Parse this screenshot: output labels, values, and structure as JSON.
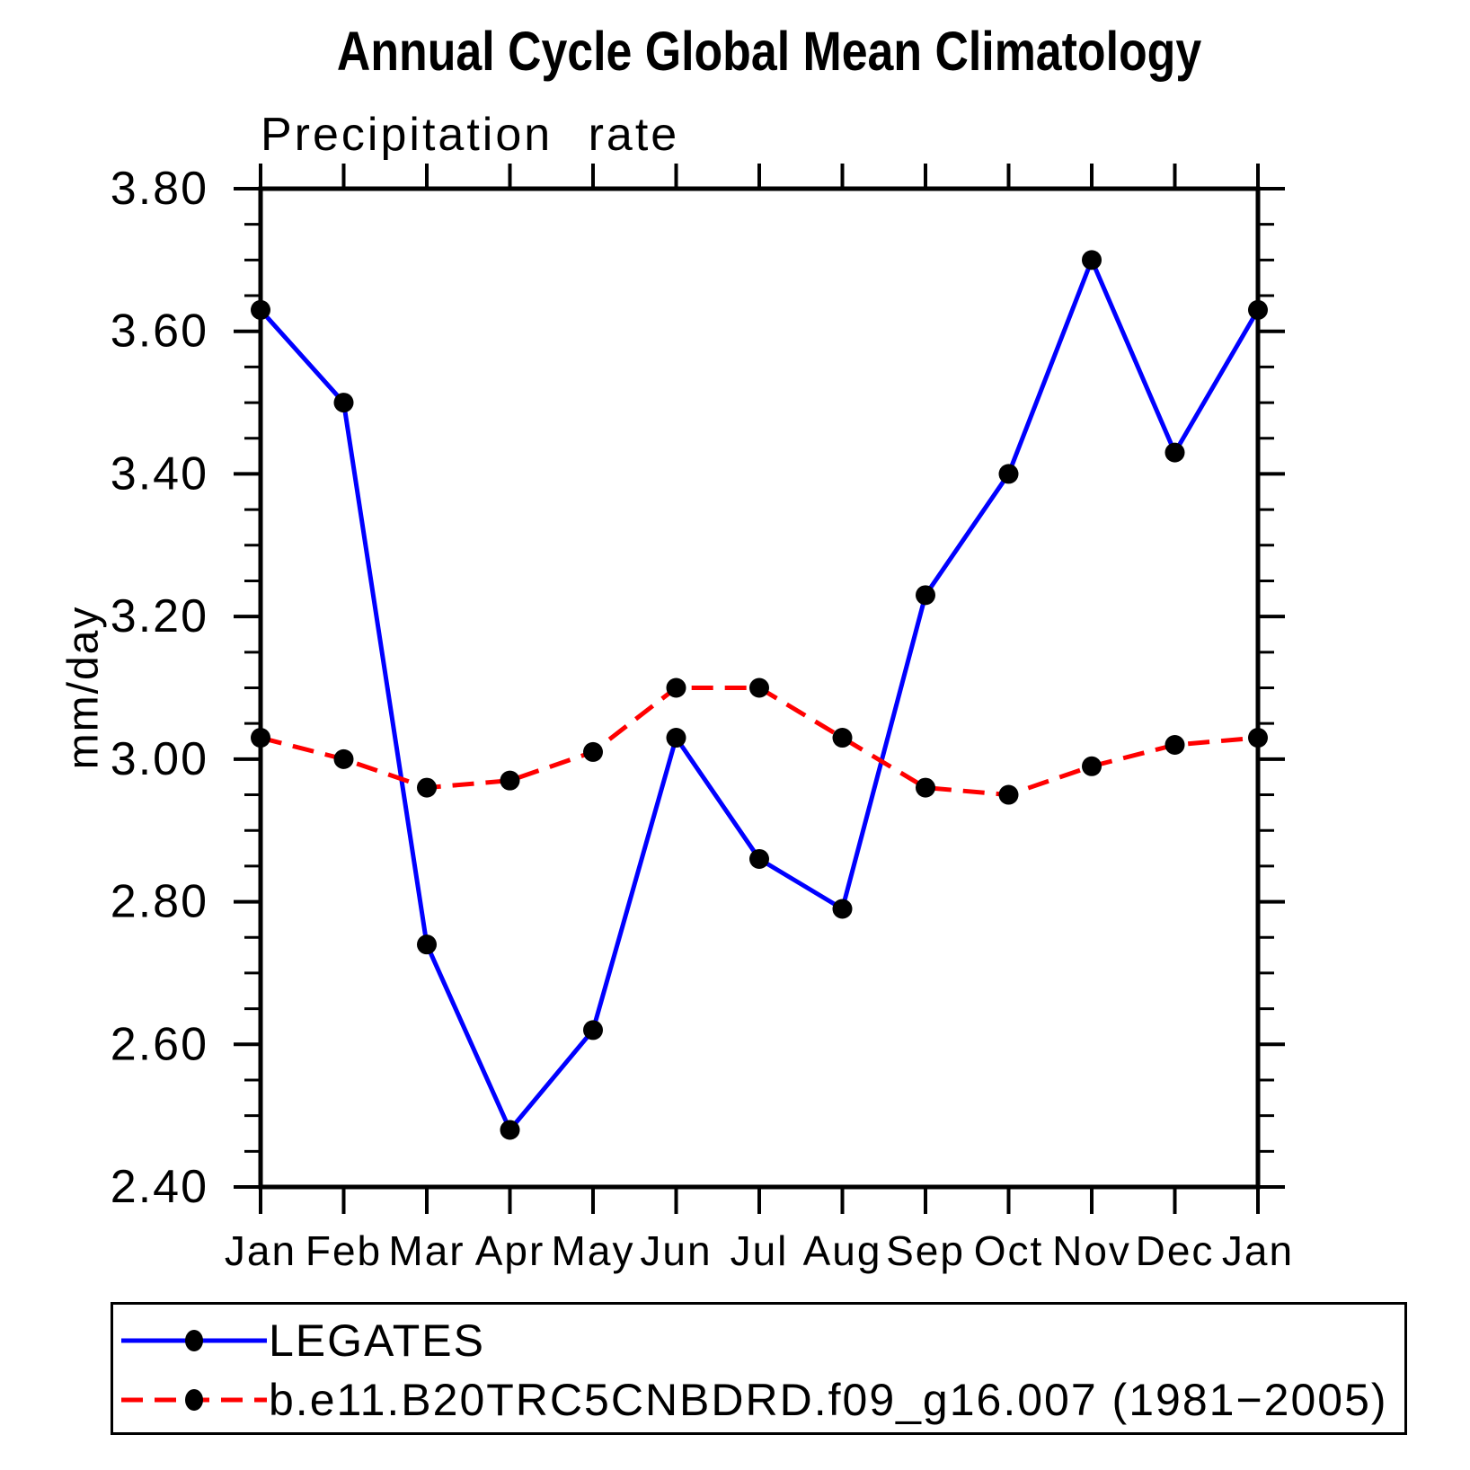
{
  "chart_data": {
    "type": "line",
    "title": "Annual Cycle Global Mean Climatology",
    "subtitle": "Precipitation rate",
    "xlabel": "",
    "ylabel": "mm/day",
    "categories": [
      "Jan",
      "Feb",
      "Mar",
      "Apr",
      "May",
      "Jun",
      "Jul",
      "Aug",
      "Sep",
      "Oct",
      "Nov",
      "Dec",
      "Jan"
    ],
    "ylim": [
      2.4,
      3.8
    ],
    "ytick_step": 0.2,
    "yminor_step": 0.05,
    "ytick_labels": [
      "2.40",
      "2.60",
      "2.80",
      "3.00",
      "3.20",
      "3.40",
      "3.60",
      "3.80"
    ],
    "grid": false,
    "frame_color": "#000000",
    "marker_radius_px": 11,
    "legend_position": "bottom-box",
    "series": [
      {
        "name": "LEGATES",
        "color": "#0000ff",
        "line_style": "solid",
        "marker": "circle",
        "marker_color": "#000000",
        "values": [
          3.63,
          3.5,
          2.74,
          2.48,
          2.62,
          3.03,
          2.86,
          2.79,
          3.23,
          3.4,
          3.7,
          3.43,
          3.63
        ]
      },
      {
        "name": "b.e11.B20TRC5CNBDRD.f09_g16.007 (1981−2005)",
        "color": "#ff0000",
        "line_style": "dashed",
        "marker": "circle",
        "marker_color": "#000000",
        "values": [
          3.03,
          3.0,
          2.96,
          2.97,
          3.01,
          3.1,
          3.1,
          3.03,
          2.96,
          2.95,
          2.99,
          3.02,
          3.03
        ]
      }
    ]
  }
}
